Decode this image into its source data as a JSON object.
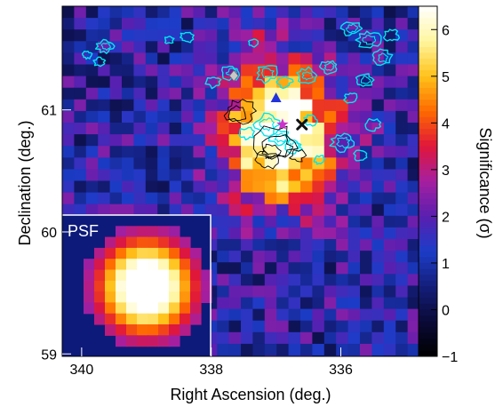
{
  "chart_data": {
    "type": "heatmap",
    "title": "",
    "xlabel": "Right Ascension (deg.)",
    "ylabel": "Declination (deg.)",
    "colorbar_label": "Significance (σ)",
    "x_reversed": true,
    "xlim": [
      340.3,
      334.8
    ],
    "ylim": [
      58.98,
      61.85
    ],
    "x_ticks": [
      340,
      338,
      336
    ],
    "y_ticks": [
      59,
      60,
      61
    ],
    "colorbar_ticks": [
      -1,
      0,
      1,
      2,
      3,
      4,
      5,
      6
    ],
    "colorbar_range": [
      -1,
      6.5
    ],
    "colormap": [
      "#000000",
      "#0a0a38",
      "#141e7a",
      "#1c3cc8",
      "#5a1fb0",
      "#a61fa0",
      "#e0163a",
      "#ff6a00",
      "#ffc21a",
      "#fff6a0",
      "#ffffff"
    ],
    "source": {
      "ra": 336.9,
      "dec": 60.78,
      "peak_sigma": 6.3
    },
    "psf_inset": {
      "label": "PSF",
      "center_ra": 339.0,
      "center_dec": 59.55,
      "peak_sigma": 6.3
    },
    "markers": [
      {
        "shape": "diamond",
        "color": "#c8c8c8",
        "ra": 337.65,
        "dec": 61.28
      },
      {
        "shape": "triangle",
        "color": "#2233dd",
        "ra": 337.0,
        "dec": 61.1
      },
      {
        "shape": "star",
        "color": "#cc33cc",
        "ra": 336.9,
        "dec": 60.88
      },
      {
        "shape": "cross",
        "color": "#111111",
        "ra": 336.6,
        "dec": 60.88
      }
    ],
    "contour_sets": [
      {
        "color": "#00e5ee"
      },
      {
        "color": "#000000"
      }
    ]
  }
}
